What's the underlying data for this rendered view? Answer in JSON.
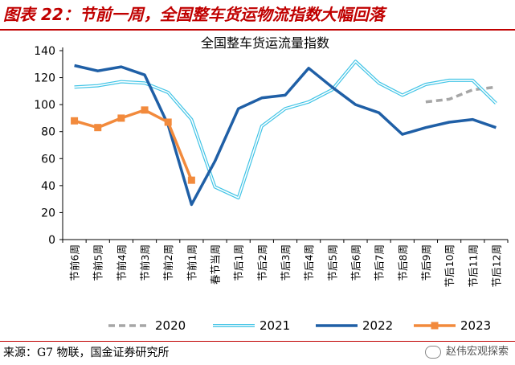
{
  "figure_title": "图表 22：节前一周，全国整车货运物流指数大幅回落",
  "source_text": "来源：G7 物联，国金证券研究所",
  "watermark_text": "赵伟宏观探索",
  "colors": {
    "title_red": "#c00000",
    "s2020": "#a6a6a6",
    "s2021": "#41c4e6",
    "s2022": "#1f5fa6",
    "s2023": "#f28a3c"
  },
  "chart_data": {
    "type": "line",
    "title": "全国整车货运流量指数",
    "categories": [
      "节前6周",
      "节前5周",
      "节前4周",
      "节前3周",
      "节前2周",
      "节前1周",
      "春节当周",
      "节后1周",
      "节后2周",
      "节后3周",
      "节后4周",
      "节后5周",
      "节后6周",
      "节后7周",
      "节后8周",
      "节后9周",
      "节后10周",
      "节后11周",
      "节后12周"
    ],
    "ylim": [
      0,
      140
    ],
    "yticks": [
      0,
      20,
      40,
      60,
      80,
      100,
      120,
      140
    ],
    "grid": false,
    "legend_position": "bottom",
    "series": [
      {
        "name": "2020",
        "style": "dashed",
        "values": [
          null,
          null,
          null,
          null,
          null,
          null,
          null,
          null,
          null,
          null,
          null,
          null,
          null,
          null,
          null,
          102,
          104,
          111,
          113
        ]
      },
      {
        "name": "2021",
        "style": "double",
        "values": [
          113,
          114,
          117,
          116,
          109,
          89,
          39,
          31,
          84,
          97,
          102,
          111,
          132,
          116,
          107,
          115,
          118,
          118,
          101
        ]
      },
      {
        "name": "2022",
        "style": "solid",
        "values": [
          129,
          125,
          128,
          122,
          85,
          26,
          58,
          97,
          105,
          107,
          127,
          113,
          100,
          94,
          78,
          83,
          87,
          89,
          83
        ]
      },
      {
        "name": "2023",
        "style": "marker",
        "values": [
          88,
          83,
          90,
          96,
          87,
          44,
          null,
          null,
          null,
          null,
          null,
          null,
          null,
          null,
          null,
          null,
          null,
          null,
          null
        ]
      }
    ]
  }
}
